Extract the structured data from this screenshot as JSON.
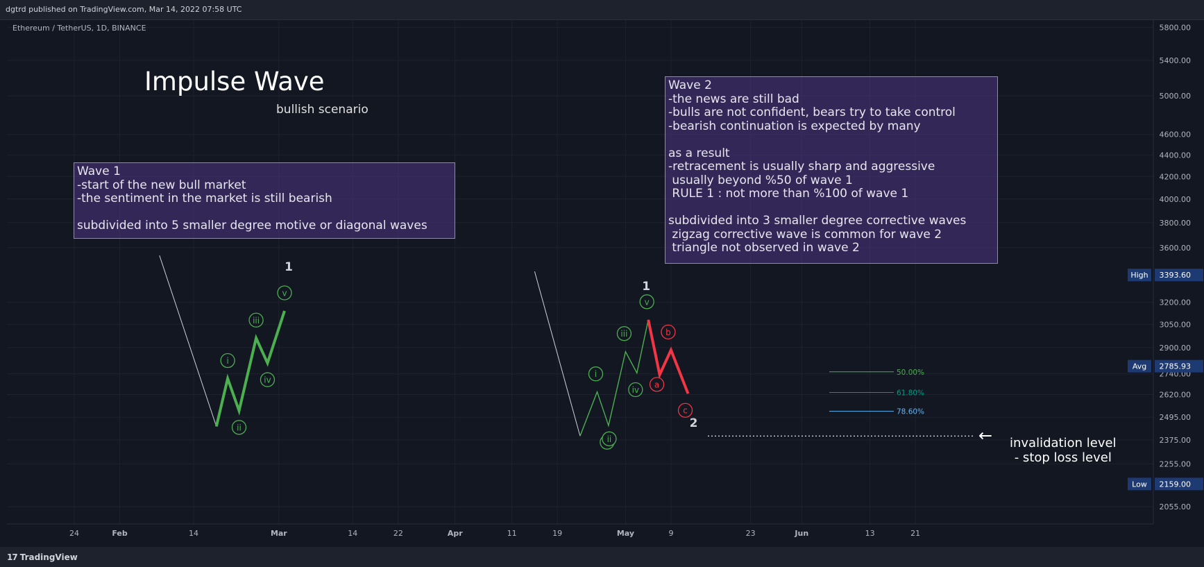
{
  "header": {
    "publisher": "dgtrd published on TradingView.com, Mar 14, 2022 07:58 UTC"
  },
  "footer": {
    "brand": "TradingView",
    "brand_mark": "17"
  },
  "symbol": "Ethereum / TetherUS, 1D, BINANCE",
  "titles": {
    "main": "Impulse Wave",
    "sub": "bullish scenario"
  },
  "notes": {
    "wave1": "Wave 1\n-start of the new bull market\n-the sentiment in the market is still bearish\n\nsubdivided into 5 smaller degree motive or diagonal waves",
    "wave2": "Wave 2\n-the news are still bad\n-bulls are not confident, bears try to take control\n-bearish continuation is expected by many\n\nas a result\n-retracement is usually sharp and aggressive\n usually beyond %50 of wave 1\n RULE 1 : not more than %100 of wave 1\n\nsubdivided into 3 smaller degree corrective waves\n zigzag corrective wave is common for wave 2\n triangle not observed in wave 2"
  },
  "invalidation": {
    "line1": "invalidation level",
    "line2": "- stop loss level",
    "arrow": "←"
  },
  "colors": {
    "background": "#131722",
    "impulse": "#4caf50",
    "correction": "#f23645",
    "fib50": "#4caf50",
    "fib618": "#089981",
    "fib786": "#64b5f6",
    "price_badge": "#1e3a73"
  },
  "chart_data": {
    "type": "line",
    "scale": "log",
    "ylim": [
      1980,
      5900
    ],
    "y_ticks": [
      "5800.00",
      "5400.00",
      "5000.00",
      "4600.00",
      "4400.00",
      "4200.00",
      "4000.00",
      "3800.00",
      "3600.00",
      "3200.00",
      "3050.00",
      "2900.00",
      "2740.00",
      "2620.00",
      "2495.00",
      "2375.00",
      "2255.00",
      "2055.00"
    ],
    "x_ticks": [
      "24",
      "Feb",
      "14",
      "Mar",
      "14",
      "22",
      "Apr",
      "11",
      "19",
      "May",
      "9",
      "23",
      "Jun",
      "13",
      "21"
    ],
    "price_labels": [
      {
        "tag": "High",
        "value": "3393.60",
        "price": 3393.6
      },
      {
        "tag": "Avg",
        "value": "2785.93",
        "price": 2785.93
      },
      {
        "tag": "Low",
        "value": "2159.00",
        "price": 2159.0
      }
    ],
    "fib_levels": [
      {
        "label": "50.00%",
        "price": 2752
      },
      {
        "label": "61.80%",
        "price": 2632
      },
      {
        "label": "78.60%",
        "price": 2527
      }
    ],
    "invalidation_price": 2395,
    "wave1_major_label": "1",
    "wave2_major_label": "2",
    "left_wave": {
      "lead_in": [
        {
          "x": "2022-02-08",
          "y": 3540
        },
        {
          "x": "2022-02-18",
          "y": 2445
        }
      ],
      "path": [
        {
          "x": "2022-02-18",
          "y": 2445
        },
        {
          "x": "2022-02-20",
          "y": 2712
        },
        {
          "x": "2022-02-22",
          "y": 2530
        },
        {
          "x": "2022-02-25",
          "y": 2960
        },
        {
          "x": "2022-02-27",
          "y": 2805
        },
        {
          "x": "2022-03-02",
          "y": 3140
        }
      ],
      "labels": [
        "i",
        "ii",
        "iii",
        "iv",
        "v"
      ]
    },
    "right_wave": {
      "lead_in": [
        {
          "x": "2022-04-15",
          "y": 3420
        },
        {
          "x": "2022-04-23",
          "y": 2395
        }
      ],
      "impulse": [
        {
          "x": "2022-04-23",
          "y": 2395
        },
        {
          "x": "2022-04-26",
          "y": 2635
        },
        {
          "x": "2022-04-28",
          "y": 2450
        },
        {
          "x": "2022-05-01",
          "y": 2875
        },
        {
          "x": "2022-05-03",
          "y": 2745
        },
        {
          "x": "2022-05-05",
          "y": 3080
        }
      ],
      "impulse_labels": [
        "i",
        "ii",
        "iii",
        "iv",
        "v"
      ],
      "correction": [
        {
          "x": "2022-05-05",
          "y": 3080
        },
        {
          "x": "2022-05-07",
          "y": 2735
        },
        {
          "x": "2022-05-09",
          "y": 2885
        },
        {
          "x": "2022-05-12",
          "y": 2625
        }
      ],
      "correction_labels": [
        "a",
        "b",
        "c"
      ]
    }
  }
}
